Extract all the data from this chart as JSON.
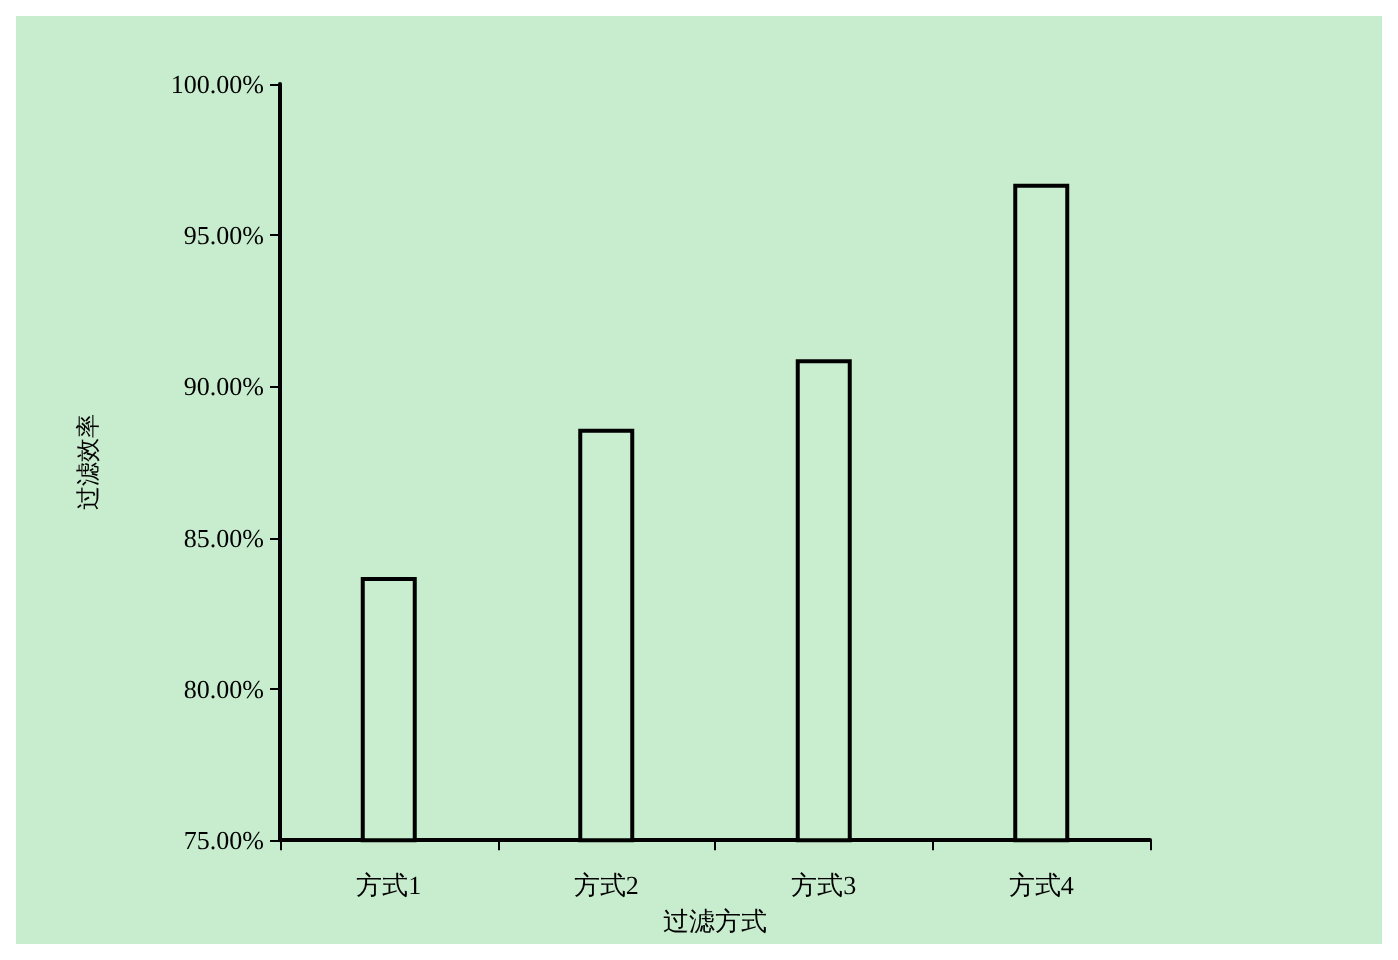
{
  "chart_data": {
    "type": "bar",
    "xlabel": "过滤方式",
    "ylabel": "过滤效率",
    "categories": [
      "方式1",
      "方式2",
      "方式3",
      "方式4"
    ],
    "values": [
      83.7,
      88.6,
      90.9,
      96.7
    ],
    "color": "#c8edcf",
    "ylim": [
      75,
      100
    ],
    "yticks": [
      {
        "value": 75,
        "label": "75.00%"
      },
      {
        "value": 80,
        "label": "80.00%"
      },
      {
        "value": 85,
        "label": "85.00%"
      },
      {
        "value": 90,
        "label": "90.00%"
      },
      {
        "value": 95,
        "label": "95.00%"
      },
      {
        "value": 100,
        "label": "100.00%"
      }
    ],
    "grid": false
  }
}
